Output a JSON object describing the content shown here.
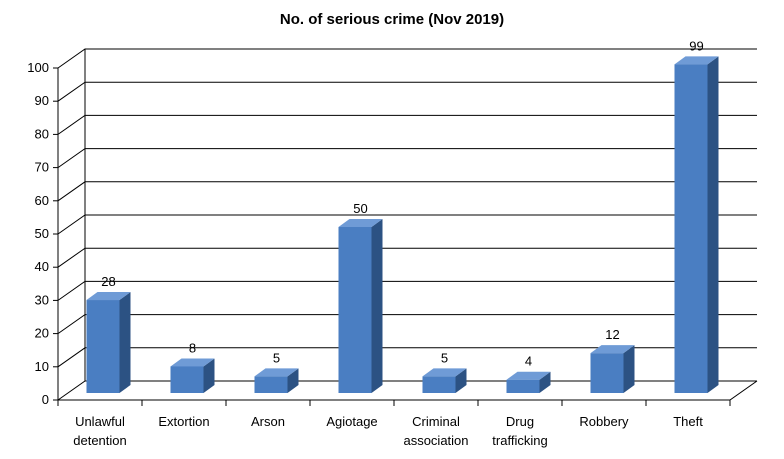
{
  "chart_data": {
    "type": "bar",
    "title": "No. of serious crime (Nov 2019)",
    "xlabel": "",
    "ylabel": "",
    "categories": [
      [
        "Unlawful",
        "detention"
      ],
      [
        "Extortion"
      ],
      [
        "Arson"
      ],
      [
        "Agiotage"
      ],
      [
        "Criminal",
        "association"
      ],
      [
        "Drug",
        "trafficking"
      ],
      [
        "Robbery"
      ],
      [
        "Theft"
      ]
    ],
    "values": [
      28,
      8,
      5,
      50,
      5,
      4,
      12,
      99
    ],
    "data_labels": [
      "28",
      "8",
      "5",
      "50",
      "5",
      "4",
      "12",
      "99"
    ],
    "ylim": [
      0,
      100
    ],
    "yticks": [
      "0",
      "10",
      "20",
      "30",
      "40",
      "50",
      "60",
      "70",
      "80",
      "90",
      "100"
    ],
    "grid": true,
    "legend": "none",
    "colors": {
      "bar_front": "#4A7EC2",
      "bar_side": "#2C5283",
      "bar_top": "#6F9BD6",
      "grid": "#000000"
    }
  }
}
